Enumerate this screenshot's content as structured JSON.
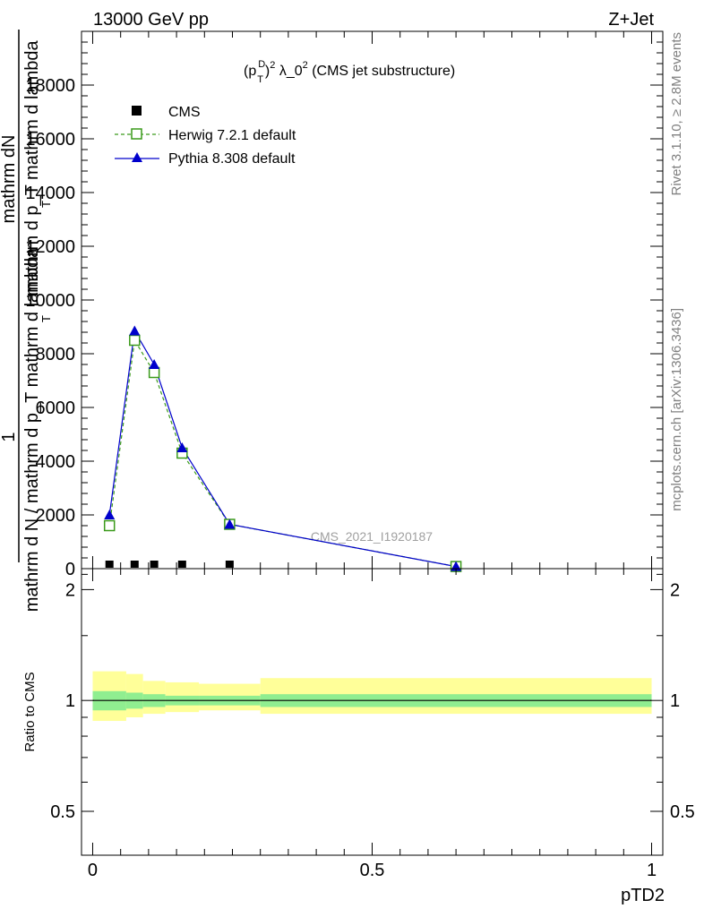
{
  "header": {
    "left": "13000 GeV pp",
    "right": "Z+Jet"
  },
  "side_labels": {
    "rivet": "Rivet 3.1.10, ≥ 2.8M events",
    "mcplots": "mcplots.cern.ch [arXiv:1306.3436]"
  },
  "watermark": "CMS_2021_I1920187",
  "colors": {
    "cms": "#000000",
    "herwig": "#3a9a1a",
    "pythia": "#0000cc",
    "band_inner": "#90ee90",
    "band_outer": "#ffff99"
  },
  "chart_data": [
    {
      "type": "line",
      "title_parts": [
        "(p",
        "D",
        "T",
        ")",
        "2",
        " λ_0",
        "2",
        " (CMS jet substructure)"
      ],
      "ylabel": {
        "numerator_one": "1",
        "numerator": "mathrm dN",
        "denominator_top": "mathrm d p_T mathrm d lambda",
        "denominator": "mathrm d N / mathrm d p_T mathrm d lambda",
        "subscript": "T"
      },
      "ylim": [
        0,
        20000
      ],
      "yticks": [
        0,
        2000,
        4000,
        6000,
        8000,
        10000,
        12000,
        14000,
        16000,
        18000
      ],
      "ytick_labels": [
        "0",
        "2000",
        "4000",
        "6000",
        "8000",
        "10000",
        "12000",
        "14000",
        "16000",
        "18000"
      ],
      "xlim": [
        -0.02,
        1.02
      ],
      "legend_position": "top-left",
      "series": [
        {
          "name": "CMS",
          "marker": "filled-square",
          "x": [
            0.03,
            0.075,
            0.11,
            0.16,
            0.245
          ],
          "y": [
            60,
            60,
            60,
            60,
            60
          ]
        },
        {
          "name": "Herwig 7.2.1 default",
          "marker": "open-square",
          "line": "dashed",
          "x": [
            0.03,
            0.075,
            0.11,
            0.16,
            0.245,
            0.65
          ],
          "y": [
            1600,
            8500,
            7300,
            4300,
            1650,
            80
          ]
        },
        {
          "name": "Pythia 8.308 default",
          "marker": "filled-triangle",
          "line": "solid",
          "x": [
            0.03,
            0.075,
            0.11,
            0.16,
            0.245,
            0.65
          ],
          "y": [
            2000,
            8850,
            7600,
            4500,
            1650,
            80
          ]
        }
      ]
    },
    {
      "type": "area",
      "ylabel": "Ratio to CMS",
      "xlabel": "pTD2",
      "ylim": [
        0.38,
        2.28
      ],
      "yticks": [
        0.5,
        1,
        2
      ],
      "ytick_labels": [
        "0.5",
        "1",
        "2"
      ],
      "xticks": [
        0,
        0.5,
        1
      ],
      "xtick_labels": [
        "0",
        "0.5",
        "1"
      ],
      "reference_line": 1,
      "bands": {
        "edges": [
          0,
          0.06,
          0.09,
          0.13,
          0.19,
          0.3,
          1.0
        ],
        "inner_low": [
          0.94,
          0.95,
          0.96,
          0.97,
          0.97,
          0.96
        ],
        "inner_high": [
          1.06,
          1.05,
          1.04,
          1.03,
          1.03,
          1.04
        ],
        "outer_low": [
          0.88,
          0.9,
          0.92,
          0.93,
          0.94,
          0.92
        ],
        "outer_high": [
          1.2,
          1.18,
          1.13,
          1.12,
          1.11,
          1.15
        ]
      }
    }
  ]
}
